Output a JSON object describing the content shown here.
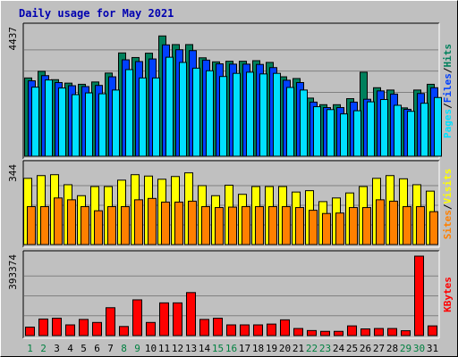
{
  "title": "Daily usage for May 2021",
  "colors": {
    "hits": "#00805c",
    "files": "#0040ff",
    "pages": "#00e0ff",
    "visits": "#ffff00",
    "sites": "#ff8000",
    "kbytes": "#ff0000",
    "weekend_label": "#008040",
    "weekday_label": "#000000"
  },
  "chart_data": [
    {
      "type": "bar",
      "categories": [
        "1",
        "2",
        "3",
        "4",
        "5",
        "6",
        "7",
        "8",
        "9",
        "10",
        "11",
        "12",
        "13",
        "14",
        "15",
        "16",
        "17",
        "18",
        "19",
        "20",
        "21",
        "22",
        "23",
        "24",
        "25",
        "26",
        "27",
        "28",
        "29",
        "30",
        "31"
      ],
      "weekend_days": [
        "1",
        "2",
        "8",
        "9",
        "15",
        "16",
        "22",
        "23",
        "29",
        "30"
      ],
      "series": [
        {
          "name": "Hits",
          "values": [
            2720,
            2950,
            2660,
            2540,
            2500,
            2580,
            2890,
            3590,
            3430,
            3580,
            4180,
            3880,
            3880,
            3420,
            3280,
            3300,
            3300,
            3320,
            3260,
            2760,
            2700,
            2020,
            1790,
            1790,
            2000,
            2920,
            2380,
            2300,
            1680,
            2300,
            2500
          ]
        },
        {
          "name": "Files",
          "values": [
            2620,
            2800,
            2560,
            2450,
            2420,
            2460,
            2760,
            3350,
            3290,
            3380,
            3870,
            3700,
            3670,
            3340,
            3210,
            3200,
            3200,
            3190,
            3080,
            2640,
            2560,
            1880,
            1690,
            1690,
            1880,
            1980,
            2270,
            2160,
            1630,
            2180,
            2380
          ]
        },
        {
          "name": "Pages",
          "values": [
            2400,
            2650,
            2370,
            2140,
            2200,
            2170,
            2300,
            3010,
            2720,
            2720,
            3440,
            3260,
            3060,
            2970,
            2770,
            2880,
            2920,
            2860,
            2880,
            2390,
            2300,
            1720,
            1620,
            1470,
            1580,
            1890,
            1970,
            1770,
            1560,
            1840,
            2040
          ]
        }
      ],
      "ymax": 4437,
      "ylabel_max": "4437",
      "right_label": [
        "Pages",
        "Files",
        "Hits"
      ]
    },
    {
      "type": "bar",
      "categories": [
        "1",
        "2",
        "3",
        "4",
        "5",
        "6",
        "7",
        "8",
        "9",
        "10",
        "11",
        "12",
        "13",
        "14",
        "15",
        "16",
        "17",
        "18",
        "19",
        "20",
        "21",
        "22",
        "23",
        "24",
        "25",
        "26",
        "27",
        "28",
        "29",
        "30",
        "31"
      ],
      "series": [
        {
          "name": "Visits",
          "values": [
            290,
            302,
            306,
            262,
            214,
            254,
            254,
            282,
            306,
            300,
            286,
            298,
            314,
            258,
            214,
            260,
            220,
            254,
            254,
            254,
            230,
            236,
            188,
            204,
            226,
            254,
            290,
            302,
            288,
            262,
            234
          ]
        },
        {
          "name": "Sites",
          "values": [
            166,
            166,
            204,
            196,
            166,
            148,
            166,
            166,
            196,
            202,
            186,
            186,
            190,
            166,
            162,
            164,
            166,
            166,
            166,
            166,
            162,
            150,
            136,
            138,
            162,
            162,
            196,
            190,
            166,
            166,
            144
          ]
        }
      ],
      "ymax": 344,
      "ylabel_max": "344",
      "right_label": [
        "Sites",
        "Visits"
      ]
    },
    {
      "type": "bar",
      "categories": [
        "1",
        "2",
        "3",
        "4",
        "5",
        "6",
        "7",
        "8",
        "9",
        "10",
        "11",
        "12",
        "13",
        "14",
        "15",
        "16",
        "17",
        "18",
        "19",
        "20",
        "21",
        "22",
        "23",
        "24",
        "25",
        "26",
        "27",
        "28",
        "29",
        "30",
        "31"
      ],
      "series": [
        {
          "name": "KBytes",
          "values": [
            42000,
            82000,
            86000,
            53000,
            80000,
            65000,
            138000,
            45000,
            177000,
            65000,
            162000,
            162000,
            213000,
            80000,
            86000,
            53000,
            53000,
            53000,
            57000,
            78000,
            35000,
            25000,
            21000,
            21000,
            48000,
            33000,
            35000,
            35000,
            24000,
            393374,
            48000
          ]
        }
      ],
      "ymax": 393374,
      "ylabel_max": "393374",
      "right_label": [
        "KBytes"
      ]
    }
  ]
}
